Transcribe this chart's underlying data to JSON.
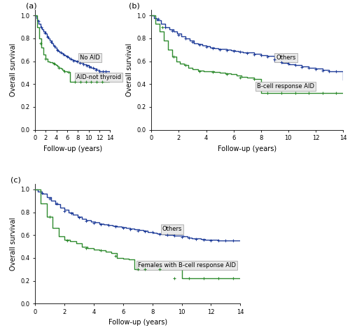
{
  "panel_a": {
    "title": "(a)",
    "blue_curve": {
      "times": [
        0,
        0.2,
        0.4,
        0.7,
        1.0,
        1.3,
        1.6,
        1.9,
        2.2,
        2.5,
        2.8,
        3.1,
        3.4,
        3.7,
        4.0,
        4.3,
        4.6,
        4.9,
        5.2,
        5.5,
        5.8,
        6.1,
        6.4,
        6.7,
        7.0,
        7.5,
        8.0,
        8.5,
        9.0,
        9.5,
        10.0,
        10.5,
        11.0,
        11.5,
        12.0,
        12.5,
        13.0,
        13.5,
        14.0
      ],
      "survival": [
        1.0,
        0.98,
        0.96,
        0.93,
        0.9,
        0.88,
        0.86,
        0.84,
        0.82,
        0.8,
        0.78,
        0.76,
        0.74,
        0.72,
        0.7,
        0.69,
        0.68,
        0.67,
        0.66,
        0.65,
        0.645,
        0.635,
        0.625,
        0.615,
        0.61,
        0.605,
        0.595,
        0.585,
        0.575,
        0.565,
        0.555,
        0.545,
        0.535,
        0.525,
        0.515,
        0.51,
        0.51,
        0.51,
        0.44
      ],
      "censors_x": [
        0.6,
        1.2,
        1.8,
        2.4,
        3.0,
        3.6,
        4.2,
        4.8,
        5.4,
        6.0,
        6.6,
        7.2,
        7.8,
        8.4,
        9.0,
        9.6,
        10.2,
        10.8,
        11.4,
        12.0,
        12.6,
        13.2
      ],
      "censors_y": [
        0.955,
        0.895,
        0.85,
        0.81,
        0.77,
        0.73,
        0.695,
        0.675,
        0.657,
        0.64,
        0.622,
        0.607,
        0.6,
        0.588,
        0.573,
        0.56,
        0.55,
        0.54,
        0.527,
        0.515,
        0.51,
        0.51
      ],
      "label": "No AID"
    },
    "green_curve": {
      "times": [
        0,
        0.4,
        0.8,
        1.2,
        1.6,
        2.0,
        2.4,
        2.8,
        3.2,
        3.6,
        3.9,
        4.2,
        4.5,
        4.8,
        5.1,
        5.4,
        5.7,
        6.0,
        6.5,
        7.0,
        7.5,
        8.0,
        8.5,
        9.0,
        9.5,
        10.0,
        10.5,
        11.0,
        12.0,
        13.0,
        14.0
      ],
      "survival": [
        1.0,
        0.9,
        0.8,
        0.72,
        0.66,
        0.62,
        0.6,
        0.59,
        0.585,
        0.575,
        0.565,
        0.555,
        0.545,
        0.535,
        0.525,
        0.515,
        0.51,
        0.505,
        0.42,
        0.42,
        0.42,
        0.42,
        0.42,
        0.42,
        0.42,
        0.42,
        0.42,
        0.42,
        0.42,
        0.42,
        0.42
      ],
      "censors_x": [
        1.0,
        2.0,
        3.5,
        4.5,
        5.5,
        6.2,
        7.5,
        8.5,
        9.5,
        10.5,
        11.5,
        12.5
      ],
      "censors_y": [
        0.76,
        0.62,
        0.578,
        0.54,
        0.513,
        0.505,
        0.42,
        0.42,
        0.42,
        0.42,
        0.42,
        0.42
      ],
      "label": "AID-not thyroid"
    }
  },
  "panel_b": {
    "title": "(b)",
    "blue_curve": {
      "times": [
        0,
        0.2,
        0.4,
        0.7,
        1.0,
        1.3,
        1.6,
        1.9,
        2.2,
        2.5,
        2.8,
        3.1,
        3.4,
        3.7,
        4.0,
        4.3,
        4.6,
        4.9,
        5.2,
        5.5,
        5.8,
        6.1,
        6.4,
        6.7,
        7.0,
        7.5,
        8.0,
        8.5,
        9.0,
        9.5,
        10.0,
        10.5,
        11.0,
        11.5,
        12.0,
        12.5,
        13.0,
        13.5,
        14.0
      ],
      "survival": [
        1.0,
        0.98,
        0.96,
        0.93,
        0.9,
        0.88,
        0.86,
        0.84,
        0.82,
        0.8,
        0.78,
        0.76,
        0.75,
        0.74,
        0.73,
        0.72,
        0.715,
        0.71,
        0.705,
        0.7,
        0.695,
        0.69,
        0.685,
        0.68,
        0.675,
        0.665,
        0.655,
        0.645,
        0.6,
        0.585,
        0.575,
        0.565,
        0.555,
        0.545,
        0.535,
        0.525,
        0.515,
        0.51,
        0.44
      ],
      "censors_x": [
        0.5,
        1.0,
        1.5,
        2.0,
        2.5,
        3.0,
        3.5,
        4.0,
        4.5,
        5.0,
        5.5,
        6.0,
        6.5,
        7.0,
        7.5,
        8.0,
        8.5,
        9.0,
        9.5,
        10.0,
        10.5,
        11.0,
        11.5,
        12.0,
        12.5,
        13.0,
        13.5
      ],
      "censors_y": [
        0.97,
        0.9,
        0.87,
        0.83,
        0.8,
        0.77,
        0.745,
        0.725,
        0.712,
        0.702,
        0.697,
        0.688,
        0.682,
        0.672,
        0.66,
        0.65,
        0.643,
        0.615,
        0.592,
        0.578,
        0.568,
        0.55,
        0.543,
        0.53,
        0.52,
        0.515,
        0.51
      ],
      "label": "Others"
    },
    "green_curve": {
      "times": [
        0,
        0.3,
        0.6,
        0.9,
        1.2,
        1.5,
        1.8,
        2.1,
        2.4,
        2.7,
        3.0,
        3.4,
        3.8,
        4.2,
        4.6,
        5.0,
        5.4,
        5.8,
        6.2,
        6.6,
        7.0,
        7.5,
        8.0,
        8.5,
        9.0,
        9.5,
        10.0,
        10.5,
        11.0,
        11.5,
        12.0,
        12.5,
        13.0,
        14.0
      ],
      "survival": [
        1.0,
        0.93,
        0.86,
        0.78,
        0.7,
        0.64,
        0.6,
        0.58,
        0.565,
        0.545,
        0.53,
        0.52,
        0.515,
        0.51,
        0.505,
        0.5,
        0.495,
        0.485,
        0.475,
        0.465,
        0.455,
        0.445,
        0.32,
        0.32,
        0.32,
        0.32,
        0.32,
        0.32,
        0.32,
        0.32,
        0.32,
        0.32,
        0.32,
        0.32
      ],
      "censors_x": [
        0.8,
        1.6,
        2.5,
        3.5,
        4.5,
        5.5,
        6.5,
        7.5,
        8.5,
        9.5,
        10.5,
        11.5,
        12.5,
        13.5
      ],
      "censors_y": [
        0.9,
        0.64,
        0.565,
        0.515,
        0.505,
        0.488,
        0.46,
        0.445,
        0.32,
        0.32,
        0.32,
        0.32,
        0.32,
        0.32
      ],
      "label": "B-cell response AID"
    }
  },
  "panel_c": {
    "title": "(c)",
    "blue_curve": {
      "times": [
        0,
        0.2,
        0.5,
        0.8,
        1.1,
        1.4,
        1.7,
        2.0,
        2.3,
        2.6,
        2.9,
        3.2,
        3.5,
        3.8,
        4.1,
        4.4,
        4.7,
        5.0,
        5.3,
        5.6,
        5.9,
        6.2,
        6.5,
        6.8,
        7.1,
        7.4,
        7.7,
        8.0,
        8.3,
        8.6,
        8.9,
        9.2,
        9.5,
        9.8,
        10.1,
        10.4,
        10.7,
        11.0,
        11.3,
        11.6,
        11.9,
        12.2,
        12.5,
        12.8,
        13.1,
        13.4,
        13.7,
        14.0
      ],
      "survival": [
        1.0,
        0.98,
        0.96,
        0.93,
        0.9,
        0.87,
        0.84,
        0.82,
        0.8,
        0.78,
        0.76,
        0.745,
        0.73,
        0.72,
        0.71,
        0.7,
        0.695,
        0.688,
        0.682,
        0.676,
        0.67,
        0.664,
        0.658,
        0.652,
        0.644,
        0.636,
        0.628,
        0.62,
        0.614,
        0.608,
        0.602,
        0.6,
        0.598,
        0.594,
        0.588,
        0.58,
        0.574,
        0.568,
        0.562,
        0.56,
        0.558,
        0.556,
        0.555,
        0.555,
        0.555,
        0.555,
        0.555,
        0.555
      ],
      "censors_x": [
        0.5,
        1.0,
        1.5,
        2.0,
        2.5,
        3.0,
        3.5,
        4.0,
        4.5,
        5.0,
        5.5,
        6.0,
        6.5,
        7.0,
        7.5,
        8.0,
        8.5,
        9.0,
        9.5,
        10.0,
        10.5,
        11.0,
        11.5,
        12.0,
        12.5,
        13.0,
        13.5
      ],
      "censors_y": [
        0.97,
        0.92,
        0.88,
        0.81,
        0.79,
        0.755,
        0.725,
        0.705,
        0.692,
        0.685,
        0.673,
        0.661,
        0.65,
        0.64,
        0.632,
        0.625,
        0.606,
        0.6,
        0.595,
        0.585,
        0.577,
        0.565,
        0.558,
        0.555,
        0.555,
        0.555,
        0.555
      ],
      "label": "Others"
    },
    "green_curve": {
      "times": [
        0,
        0.4,
        0.8,
        1.2,
        1.6,
        2.0,
        2.4,
        2.8,
        3.2,
        3.6,
        4.0,
        4.4,
        4.8,
        5.2,
        5.6,
        6.0,
        6.4,
        6.8,
        7.2,
        7.6,
        8.0,
        9.0,
        10.0,
        11.0,
        12.0,
        13.0,
        14.0
      ],
      "survival": [
        1.0,
        0.88,
        0.76,
        0.66,
        0.59,
        0.56,
        0.545,
        0.53,
        0.5,
        0.485,
        0.475,
        0.465,
        0.455,
        0.445,
        0.4,
        0.395,
        0.385,
        0.3,
        0.3,
        0.3,
        0.3,
        0.3,
        0.22,
        0.22,
        0.22,
        0.22,
        0.22
      ],
      "censors_x": [
        1.0,
        2.2,
        3.5,
        4.5,
        5.5,
        7.0,
        7.5,
        8.5,
        9.5,
        10.5,
        11.5,
        12.5,
        13.5
      ],
      "censors_y": [
        0.76,
        0.55,
        0.485,
        0.465,
        0.42,
        0.3,
        0.3,
        0.3,
        0.22,
        0.22,
        0.22,
        0.22,
        0.22
      ],
      "label": "Females with B-cell response AID"
    }
  },
  "xlabel": "Follow-up (years)",
  "ylabel": "Overall survival",
  "xlim": [
    0,
    14
  ],
  "ylim": [
    0.0,
    1.05
  ],
  "xticks": [
    0,
    2,
    4,
    6,
    8,
    10,
    12,
    14
  ],
  "yticks": [
    0.0,
    0.2,
    0.4,
    0.6,
    0.8,
    1.0
  ],
  "blue_color": "#1f3d99",
  "green_color": "#2e8b2e",
  "axis_label_fontsize": 7,
  "tick_fontsize": 6,
  "title_fontsize": 8,
  "legend_fontsize": 6
}
